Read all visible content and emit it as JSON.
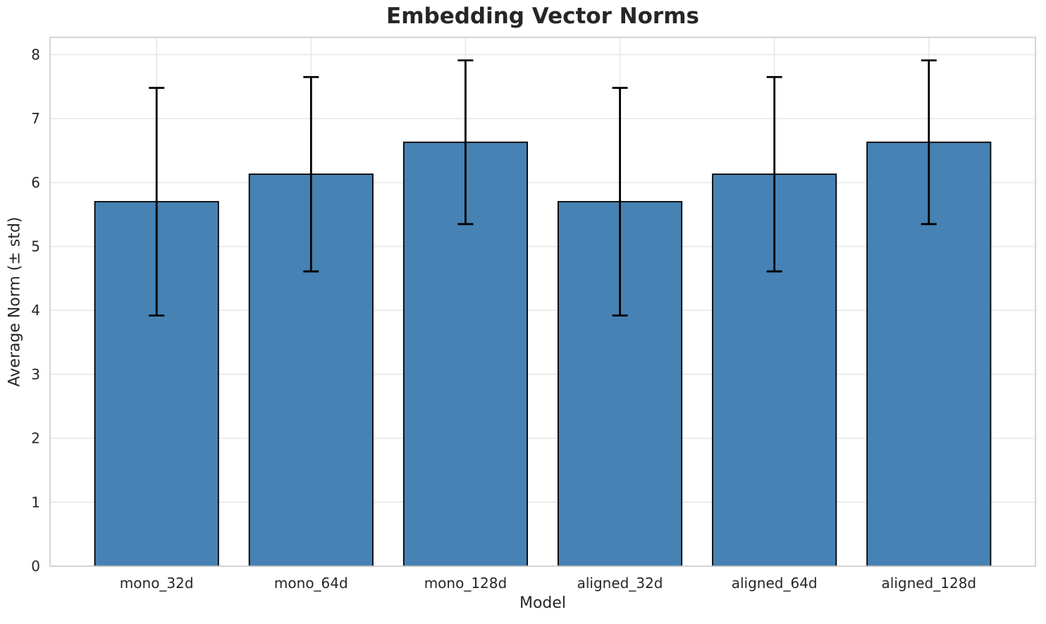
{
  "chart_data": {
    "type": "bar",
    "title": "Embedding Vector Norms",
    "xlabel": "Model",
    "ylabel": "Average Norm (± std)",
    "categories": [
      "mono_32d",
      "mono_64d",
      "mono_128d",
      "aligned_32d",
      "aligned_64d",
      "aligned_128d"
    ],
    "values": [
      5.7,
      6.13,
      6.63,
      5.7,
      6.13,
      6.63
    ],
    "errors": [
      1.78,
      1.52,
      1.28,
      1.78,
      1.52,
      1.28
    ],
    "yticks": [
      0,
      1,
      2,
      3,
      4,
      5,
      6,
      7,
      8
    ],
    "ylim": [
      0,
      8.27
    ],
    "xlim": [
      -0.69,
      5.69
    ],
    "bar_width_fraction": 0.8,
    "grid": "both",
    "legend": "none",
    "error_bar_style": "caps-top-and-bottom",
    "colors": {
      "bar_fill": "#4682B4",
      "bar_edge": "#000000",
      "error_bar": "#000000",
      "gridline": "#e7e7e7",
      "spine": "#d0d0d0",
      "text": "#262626",
      "background": "#ffffff"
    }
  }
}
